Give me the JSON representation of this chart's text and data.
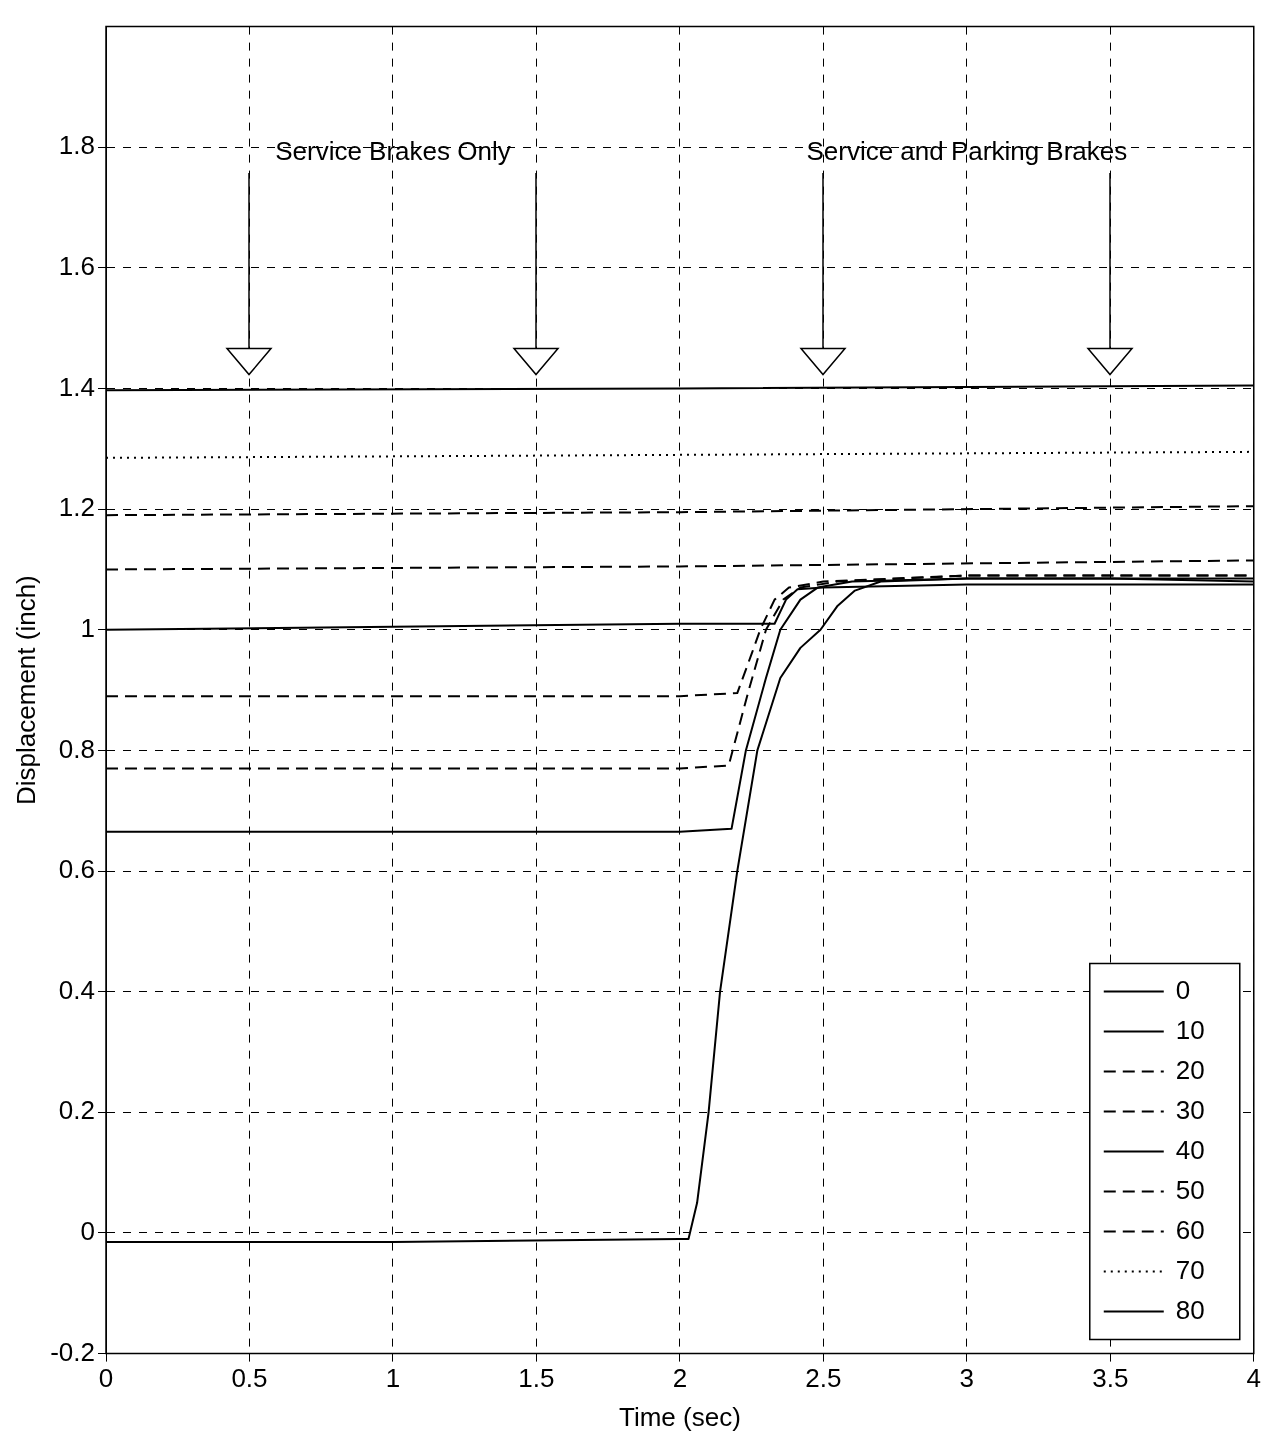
{
  "chart_data": {
    "type": "line",
    "xlabel": "Time (sec)",
    "ylabel": "Displacement (inch)",
    "xlim": [
      0,
      4
    ],
    "xticks": [
      0,
      0.5,
      1,
      1.5,
      2,
      2.5,
      3,
      3.5,
      4
    ],
    "ylim": [
      -0.2,
      2
    ],
    "yticks": [
      -0.2,
      0,
      0.2,
      0.4,
      0.6,
      0.8,
      1,
      1.2,
      1.4,
      1.6,
      1.8
    ],
    "grid": true,
    "legend": "bottom right",
    "marker": "none",
    "annotations": [
      "Service Brakes Only",
      "Service and Parking Brakes"
    ],
    "series": [
      {
        "name": "0",
        "color": "#000000",
        "line_style": "solid",
        "x": [
          0,
          1,
          2,
          2.03,
          2.06,
          2.1,
          2.14,
          2.2,
          2.27,
          2.35,
          2.42,
          2.49,
          2.55,
          2.61,
          2.7,
          3,
          3.5,
          4
        ],
        "values": [
          -0.015,
          -0.015,
          -0.01,
          -0.01,
          0.05,
          0.2,
          0.4,
          0.6,
          0.8,
          0.92,
          0.97,
          1.0,
          1.04,
          1.065,
          1.08,
          1.085,
          1.085,
          1.08
        ]
      },
      {
        "name": "10",
        "color": "#000000",
        "line_style": "solid",
        "x": [
          0,
          1,
          2,
          2.18,
          2.23,
          2.3,
          2.35,
          2.42,
          2.48,
          2.6,
          3,
          4
        ],
        "values": [
          0.665,
          0.665,
          0.665,
          0.67,
          0.8,
          0.92,
          1.0,
          1.05,
          1.07,
          1.08,
          1.085,
          1.085
        ]
      },
      {
        "name": "20",
        "color": "#000000",
        "line_style": "dashed",
        "x": [
          0,
          1,
          2,
          2.17,
          2.24,
          2.3,
          2.36,
          2.42,
          2.55,
          3,
          4
        ],
        "values": [
          0.77,
          0.77,
          0.77,
          0.775,
          0.9,
          1.0,
          1.05,
          1.07,
          1.08,
          1.09,
          1.09
        ]
      },
      {
        "name": "30",
        "color": "#000000",
        "line_style": "dashed",
        "x": [
          0,
          1,
          2,
          2.2,
          2.25,
          2.28,
          2.33,
          2.38,
          2.5,
          3,
          4
        ],
        "values": [
          0.89,
          0.89,
          0.89,
          0.895,
          0.96,
          1.0,
          1.05,
          1.07,
          1.08,
          1.09,
          1.09
        ]
      },
      {
        "name": "40",
        "color": "#000000",
        "line_style": "solid",
        "x": [
          0,
          1,
          2,
          2.33,
          2.37,
          2.41,
          2.5,
          3,
          4
        ],
        "values": [
          1.0,
          1.005,
          1.01,
          1.01,
          1.05,
          1.067,
          1.07,
          1.075,
          1.075
        ]
      },
      {
        "name": "50",
        "color": "#000000",
        "line_style": "dashed",
        "x": [
          0,
          2,
          4
        ],
        "values": [
          1.1,
          1.105,
          1.115
        ]
      },
      {
        "name": "60",
        "color": "#000000",
        "line_style": "dashed",
        "x": [
          0,
          2,
          4
        ],
        "values": [
          1.19,
          1.195,
          1.205
        ]
      },
      {
        "name": "70",
        "color": "#000000",
        "line_style": "dotted",
        "x": [
          0,
          2,
          4
        ],
        "values": [
          1.285,
          1.29,
          1.295
        ]
      },
      {
        "name": "80",
        "color": "#000000",
        "line_style": "solid",
        "x": [
          0,
          2,
          4
        ],
        "values": [
          1.397,
          1.4,
          1.405
        ]
      }
    ]
  }
}
